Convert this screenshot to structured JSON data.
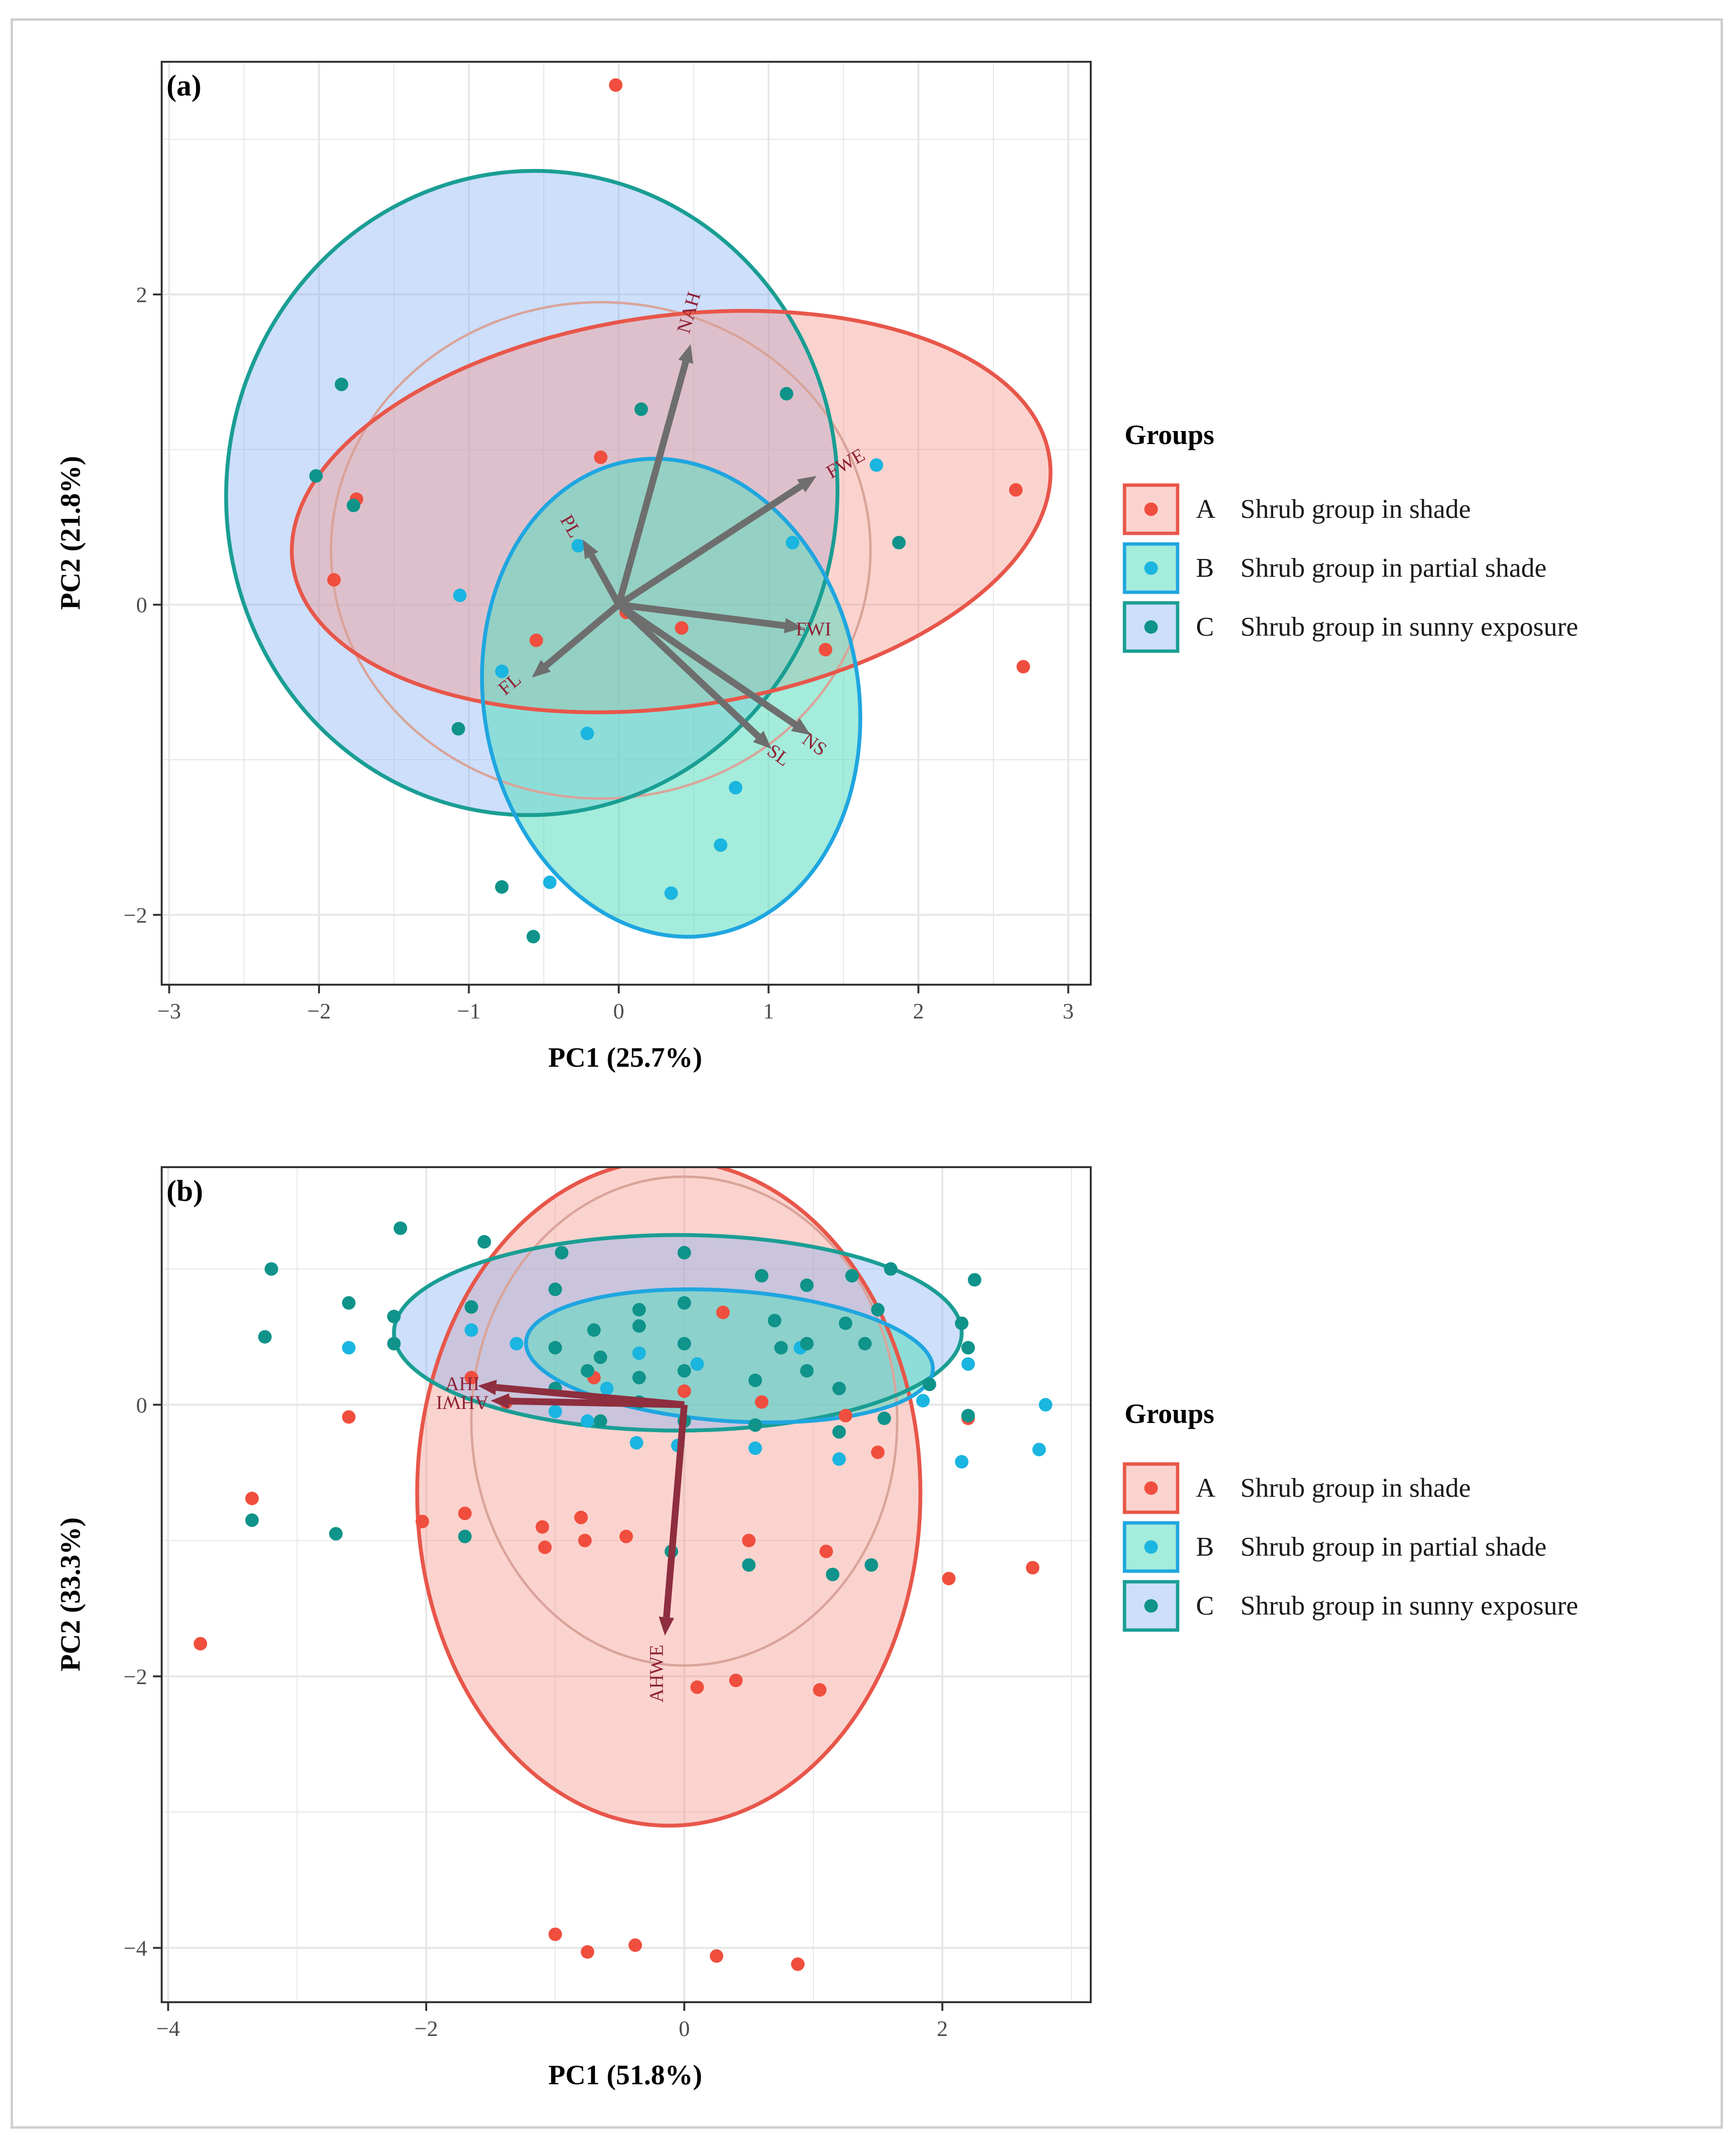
{
  "colors": {
    "A": "#f04e3e",
    "B": "#1ab5e0",
    "C": "#0f938a",
    "A_ellipse": "#e8564a",
    "B_ellipse": "#1fa6e0",
    "C_ellipse": "#1a9e94",
    "arrow": "#6e6e6e",
    "arrow_b": "#8e2e3e",
    "arrow_label": "#8e2236"
  },
  "legend": {
    "title": "Groups",
    "items": [
      {
        "key": "A",
        "label": "Shrub group in shade"
      },
      {
        "key": "B",
        "label": "Shrub group in partial shade"
      },
      {
        "key": "C",
        "label": "Shrub group in sunny exposure"
      }
    ]
  },
  "chart_data": [
    {
      "panel": "(a)",
      "type": "scatter",
      "xlabel": "PC1 (25.7%)",
      "ylabel": "PC2 (21.8%)",
      "xlim": [
        -3.05,
        3.15
      ],
      "ylim": [
        -2.45,
        3.5
      ],
      "xticks": [
        -3,
        -2,
        -1,
        0,
        1,
        2,
        3
      ],
      "yticks": [
        -2,
        0,
        2
      ],
      "grid": true,
      "series": [
        {
          "name": "A",
          "points": [
            [
              -0.02,
              3.35
            ],
            [
              -0.12,
              0.95
            ],
            [
              -1.75,
              0.68
            ],
            [
              -1.9,
              0.16
            ],
            [
              0.05,
              -0.05
            ],
            [
              -0.55,
              -0.23
            ],
            [
              0.42,
              -0.15
            ],
            [
              1.38,
              -0.29
            ],
            [
              2.65,
              0.74
            ],
            [
              2.7,
              -0.4
            ]
          ]
        },
        {
          "name": "B",
          "points": [
            [
              -0.27,
              0.38
            ],
            [
              -1.06,
              0.06
            ],
            [
              -0.78,
              -0.43
            ],
            [
              -0.21,
              -0.83
            ],
            [
              1.16,
              0.4
            ],
            [
              1.72,
              0.9
            ],
            [
              0.78,
              -1.18
            ],
            [
              0.68,
              -1.55
            ],
            [
              0.35,
              -1.86
            ],
            [
              -0.46,
              -1.79
            ]
          ]
        },
        {
          "name": "C",
          "points": [
            [
              -1.85,
              1.42
            ],
            [
              -2.02,
              0.83
            ],
            [
              -1.77,
              0.64
            ],
            [
              0.15,
              1.26
            ],
            [
              1.12,
              1.36
            ],
            [
              1.87,
              0.4
            ],
            [
              -1.07,
              -0.8
            ],
            [
              -0.78,
              -1.82
            ],
            [
              -0.57,
              -2.14
            ]
          ]
        }
      ],
      "ellipses": [
        {
          "name": "C",
          "cx": -0.58,
          "cy": 0.72,
          "rx": 2.15,
          "ry": 1.97,
          "angle": 85
        },
        {
          "name": "A",
          "cx": 0.35,
          "cy": 0.6,
          "rx": 2.55,
          "ry": 1.26,
          "angle": 8
        },
        {
          "name": "B",
          "cx": 0.35,
          "cy": -0.6,
          "rx": 1.25,
          "ry": 1.55,
          "angle": 10
        }
      ],
      "faint_circle": {
        "cx": -0.12,
        "cy": 0.35,
        "rx": 1.8,
        "ry": 1.6
      },
      "loadings": [
        {
          "label": "NAH",
          "x": 0.48,
          "y": 1.68,
          "lx": 0.48,
          "ly": 1.88,
          "rot": -74
        },
        {
          "label": "FWE",
          "x": 1.32,
          "y": 0.83,
          "lx": 1.52,
          "ly": 0.9,
          "rot": -30
        },
        {
          "label": "PL",
          "x": -0.24,
          "y": 0.42,
          "lx": -0.33,
          "ly": 0.5,
          "rot": 60
        },
        {
          "label": "FWI",
          "x": 1.23,
          "y": -0.15,
          "lx": 1.3,
          "ly": -0.17,
          "rot": 0
        },
        {
          "label": "FL",
          "x": -0.58,
          "y": -0.47,
          "lx": -0.72,
          "ly": -0.52,
          "rot": -40
        },
        {
          "label": "NS",
          "x": 1.28,
          "y": -0.84,
          "lx": 1.3,
          "ly": -0.91,
          "rot": 36
        },
        {
          "label": "SL",
          "x": 1.02,
          "y": -0.93,
          "lx": 1.06,
          "ly": -0.98,
          "rot": 36
        }
      ]
    },
    {
      "panel": "(b)",
      "type": "scatter",
      "xlabel": "PC1 (51.8%)",
      "ylabel": "PC2 (33.3%)",
      "xlim": [
        -4.05,
        3.15
      ],
      "ylim": [
        -4.4,
        1.75
      ],
      "xticks": [
        -4,
        -2,
        0,
        2
      ],
      "yticks": [
        -4,
        -2,
        0
      ],
      "grid": true,
      "series": [
        {
          "name": "A",
          "points": [
            [
              -3.75,
              -1.76
            ],
            [
              -3.35,
              -0.69
            ],
            [
              -2.6,
              -0.09
            ],
            [
              -2.03,
              -0.86
            ],
            [
              -1.7,
              -0.8
            ],
            [
              -1.65,
              0.2
            ],
            [
              -1.38,
              0.02
            ],
            [
              -1.1,
              -0.9
            ],
            [
              -1.08,
              -1.05
            ],
            [
              -0.8,
              -0.83
            ],
            [
              -0.77,
              -1.0
            ],
            [
              -0.7,
              0.2
            ],
            [
              -0.45,
              -0.97
            ],
            [
              0.0,
              0.1
            ],
            [
              0.3,
              0.68
            ],
            [
              0.5,
              -1.0
            ],
            [
              0.6,
              0.02
            ],
            [
              1.1,
              -1.08
            ],
            [
              1.25,
              -0.08
            ],
            [
              1.5,
              -0.35
            ],
            [
              2.05,
              -1.28
            ],
            [
              2.2,
              -0.1
            ],
            [
              2.7,
              -1.2
            ],
            [
              0.1,
              -2.08
            ],
            [
              0.4,
              -2.03
            ],
            [
              1.05,
              -2.1
            ],
            [
              -1.0,
              -3.9
            ],
            [
              -0.75,
              -4.03
            ],
            [
              -0.38,
              -3.98
            ],
            [
              0.25,
              -4.06
            ],
            [
              0.88,
              -4.12
            ]
          ]
        },
        {
          "name": "B",
          "points": [
            [
              -2.6,
              0.42
            ],
            [
              -1.65,
              0.55
            ],
            [
              -1.3,
              0.45
            ],
            [
              -1.0,
              -0.05
            ],
            [
              -0.75,
              -0.12
            ],
            [
              -0.6,
              0.12
            ],
            [
              -0.35,
              0.38
            ],
            [
              -0.37,
              -0.28
            ],
            [
              -0.05,
              -0.3
            ],
            [
              0.1,
              0.3
            ],
            [
              0.55,
              -0.32
            ],
            [
              0.9,
              0.42
            ],
            [
              1.2,
              -0.4
            ],
            [
              1.85,
              0.03
            ],
            [
              2.2,
              0.3
            ],
            [
              2.15,
              -0.42
            ],
            [
              2.8,
              0.0
            ],
            [
              2.75,
              -0.33
            ]
          ]
        },
        {
          "name": "C",
          "points": [
            [
              -3.2,
              1.0
            ],
            [
              -3.25,
              0.5
            ],
            [
              -3.35,
              -0.85
            ],
            [
              -2.7,
              -0.95
            ],
            [
              -2.6,
              0.75
            ],
            [
              -2.25,
              0.45
            ],
            [
              -2.25,
              0.65
            ],
            [
              -2.2,
              1.3
            ],
            [
              -1.65,
              0.72
            ],
            [
              -1.55,
              1.2
            ],
            [
              -1.7,
              -0.97
            ],
            [
              -1.0,
              0.85
            ],
            [
              -0.95,
              1.12
            ],
            [
              -1.0,
              0.42
            ],
            [
              -1.0,
              0.12
            ],
            [
              -0.75,
              0.25
            ],
            [
              -0.7,
              0.55
            ],
            [
              -0.65,
              0.35
            ],
            [
              -0.65,
              -0.12
            ],
            [
              -0.35,
              0.2
            ],
            [
              -0.35,
              0.58
            ],
            [
              -0.35,
              0.7
            ],
            [
              -0.35,
              0.02
            ],
            [
              -0.1,
              -1.08
            ],
            [
              0.0,
              1.12
            ],
            [
              0.0,
              0.75
            ],
            [
              0.0,
              0.45
            ],
            [
              0.0,
              0.25
            ],
            [
              0.0,
              -0.12
            ],
            [
              0.55,
              0.18
            ],
            [
              0.55,
              -0.15
            ],
            [
              0.5,
              -1.18
            ],
            [
              0.6,
              0.95
            ],
            [
              0.7,
              0.62
            ],
            [
              0.75,
              0.42
            ],
            [
              0.95,
              0.88
            ],
            [
              0.95,
              0.45
            ],
            [
              0.95,
              0.25
            ],
            [
              1.2,
              -0.2
            ],
            [
              1.2,
              0.12
            ],
            [
              1.25,
              0.6
            ],
            [
              1.3,
              0.95
            ],
            [
              1.4,
              0.45
            ],
            [
              1.5,
              0.7
            ],
            [
              1.45,
              -1.18
            ],
            [
              1.55,
              -0.1
            ],
            [
              1.6,
              1.0
            ],
            [
              1.9,
              0.15
            ],
            [
              2.15,
              0.6
            ],
            [
              2.2,
              0.42
            ],
            [
              2.2,
              -0.08
            ],
            [
              2.25,
              0.92
            ],
            [
              1.15,
              -1.25
            ]
          ]
        }
      ],
      "ellipses": [
        {
          "name": "A",
          "cx": -0.12,
          "cy": -0.65,
          "rx": 1.95,
          "ry": 2.45,
          "angle": 0
        },
        {
          "name": "C",
          "cx": -0.05,
          "cy": 0.53,
          "rx": 2.2,
          "ry": 0.72,
          "angle": 0
        },
        {
          "name": "B",
          "cx": 0.35,
          "cy": 0.36,
          "rx": 1.58,
          "ry": 0.48,
          "angle": -4
        }
      ],
      "faint_circle": {
        "cx": 0.0,
        "cy": -0.12,
        "rx": 1.65,
        "ry": 1.8
      },
      "loadings": [
        {
          "label": "AHI",
          "x": -1.6,
          "y": 0.14,
          "lx": -1.72,
          "ly": 0.14,
          "rot": 0
        },
        {
          "label": "AHWI",
          "x": -1.5,
          "y": 0.03,
          "lx": -1.72,
          "ly": 0.03,
          "rot": 180
        },
        {
          "label": "AHWE",
          "x": -0.15,
          "y": -1.7,
          "lx": -0.2,
          "ly": -1.98,
          "rot": -90
        }
      ]
    }
  ]
}
